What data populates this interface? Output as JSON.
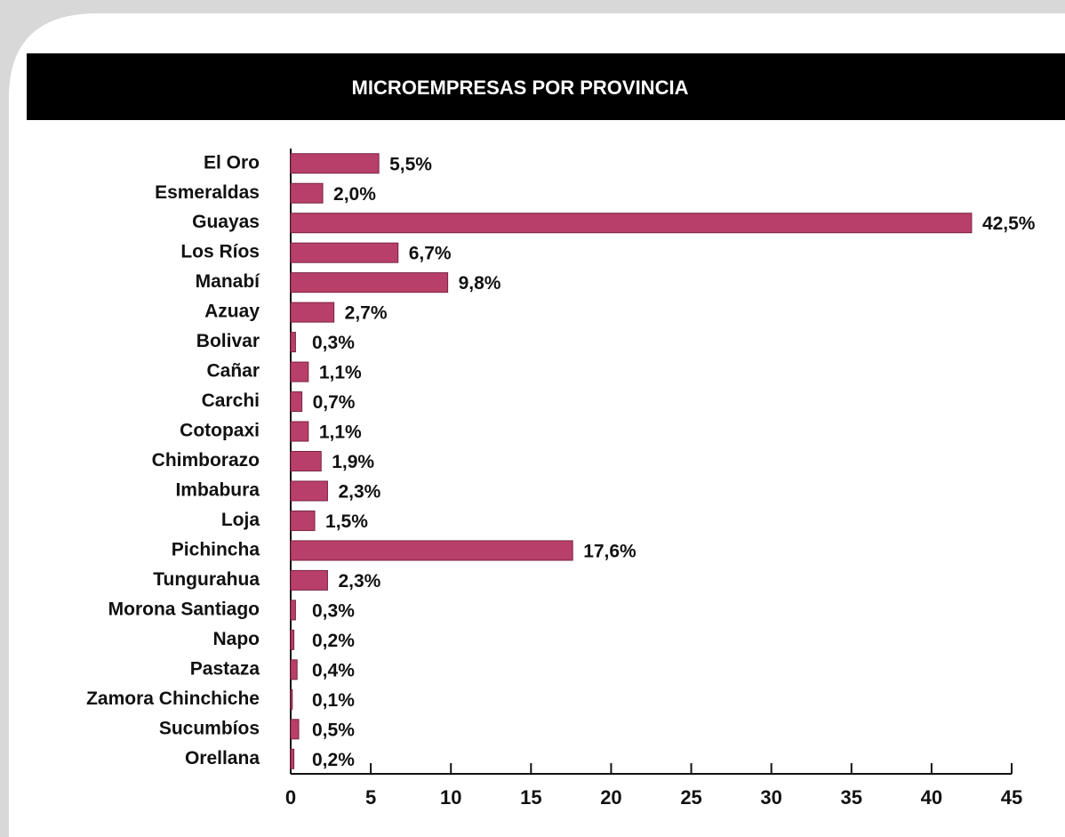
{
  "chart_data": {
    "type": "bar",
    "orientation": "horizontal",
    "title": "MICROEMPRESAS POR PROVINCIA",
    "categories": [
      "El Oro",
      "Esmeraldas",
      "Guayas",
      "Los Ríos",
      "Manabí",
      "Azuay",
      "Bolivar",
      "Cañar",
      "Carchi",
      "Cotopaxi",
      "Chimborazo",
      "Imbabura",
      "Loja",
      "Pichincha",
      "Tungurahua",
      "Morona Santiago",
      "Napo",
      "Pastaza",
      "Zamora Chinchiche",
      "Sucumbíos",
      "Orellana"
    ],
    "values": [
      5.5,
      2.0,
      42.5,
      6.7,
      9.8,
      2.7,
      0.3,
      1.1,
      0.7,
      1.1,
      1.9,
      2.3,
      1.5,
      17.6,
      2.3,
      0.3,
      0.2,
      0.4,
      0.1,
      0.5,
      0.2
    ],
    "value_labels": [
      "5,5%",
      "2,0%",
      "42,5%",
      "6,7%",
      "9,8%",
      "2,7%",
      "0,3%",
      "1,1%",
      "0,7%",
      "1,1%",
      "1,9%",
      "2,3%",
      "1,5%",
      "17,6%",
      "2,3%",
      "0,3%",
      "0,2%",
      "0,4%",
      "0,1%",
      "0,5%",
      "0,2%"
    ],
    "color": "#b83f69",
    "xlim": [
      0,
      45
    ],
    "xticks": [
      0,
      5,
      10,
      15,
      20,
      25,
      30,
      35,
      40,
      45
    ]
  }
}
